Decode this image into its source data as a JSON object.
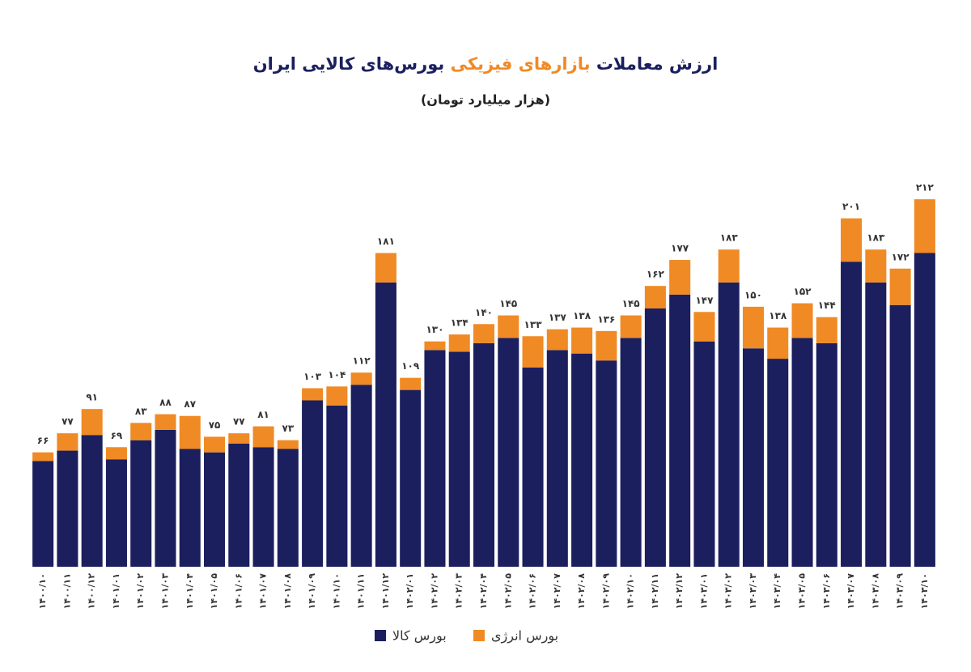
{
  "chart_data": {
    "type": "stacked-bar",
    "title": [
      "ارزش معاملات",
      "بازارهای فیزیکی",
      "بورس‌های کالایی ایران"
    ],
    "title_color": "#1b1f5e",
    "title_highlight_color": "#f08a24",
    "subtitle": "(هزار میلیارد تومان)",
    "categories": [
      "۱۴۰۰/۱۰",
      "۱۴۰۰/۱۱",
      "۱۴۰۰/۱۲",
      "۱۴۰۱/۰۱",
      "۱۴۰۱/۰۲",
      "۱۴۰۱/۰۳",
      "۱۴۰۱/۰۴",
      "۱۴۰۱/۰۵",
      "۱۴۰۱/۰۶",
      "۱۴۰۱/۰۷",
      "۱۴۰۱/۰۸",
      "۱۴۰۱/۰۹",
      "۱۴۰۱/۱۰",
      "۱۴۰۱/۱۱",
      "۱۴۰۱/۱۲",
      "۱۴۰۲/۰۱",
      "۱۴۰۲/۰۲",
      "۱۴۰۲/۰۳",
      "۱۴۰۲/۰۴",
      "۱۴۰۲/۰۵",
      "۱۴۰۲/۰۶",
      "۱۴۰۲/۰۷",
      "۱۴۰۲/۰۸",
      "۱۴۰۲/۰۹",
      "۱۴۰۲/۱۰",
      "۱۴۰۲/۱۱",
      "۱۴۰۲/۱۲",
      "۱۴۰۳/۰۱",
      "۱۴۰۳/۰۲",
      "۱۴۰۳/۰۳",
      "۱۴۰۳/۰۴",
      "۱۴۰۳/۰۵",
      "۱۴۰۳/۰۶",
      "۱۴۰۳/۰۷",
      "۱۴۰۳/۰۸",
      "۱۴۰۳/۰۹",
      "۱۴۰۳/۱۰"
    ],
    "series": [
      {
        "name": "بورس کالا",
        "color": "#1b1f5e",
        "values": [
          61,
          67,
          76,
          62,
          73,
          79,
          68,
          66,
          71,
          69,
          68,
          96,
          93,
          105,
          164,
          102,
          125,
          124,
          129,
          132,
          115,
          125,
          123,
          119,
          132,
          149,
          157,
          130,
          164,
          126,
          120,
          132,
          129,
          176,
          164,
          151,
          181
        ]
      },
      {
        "name": "بورس انرژی",
        "color": "#f08a24",
        "values": [
          5,
          10,
          15,
          7,
          10,
          9,
          19,
          9,
          6,
          12,
          5,
          7,
          11,
          7,
          17,
          7,
          5,
          10,
          11,
          13,
          18,
          12,
          15,
          17,
          13,
          13,
          20,
          17,
          19,
          24,
          18,
          20,
          15,
          25,
          19,
          21,
          31
        ]
      }
    ],
    "totals": [
      66,
      77,
      91,
      69,
      83,
      88,
      87,
      75,
      77,
      81,
      73,
      103,
      104,
      112,
      181,
      109,
      130,
      134,
      140,
      145,
      133,
      137,
      138,
      136,
      145,
      162,
      177,
      147,
      183,
      150,
      138,
      152,
      144,
      201,
      183,
      172,
      212
    ],
    "total_labels": [
      "۶۶",
      "۷۷",
      "۹۱",
      "۶۹",
      "۸۳",
      "۸۸",
      "۸۷",
      "۷۵",
      "۷۷",
      "۸۱",
      "۷۳",
      "۱۰۳",
      "۱۰۴",
      "۱۱۲",
      "۱۸۱",
      "۱۰۹",
      "۱۳۰",
      "۱۳۴",
      "۱۴۰",
      "۱۴۵",
      "۱۳۳",
      "۱۳۷",
      "۱۳۸",
      "۱۳۶",
      "۱۴۵",
      "۱۶۲",
      "۱۷۷",
      "۱۴۷",
      "۱۸۳",
      "۱۵۰",
      "۱۳۸",
      "۱۵۲",
      "۱۴۴",
      "۲۰۱",
      "۱۸۳",
      "۱۷۲",
      "۲۱۲"
    ],
    "ylim": [
      0,
      220
    ]
  }
}
